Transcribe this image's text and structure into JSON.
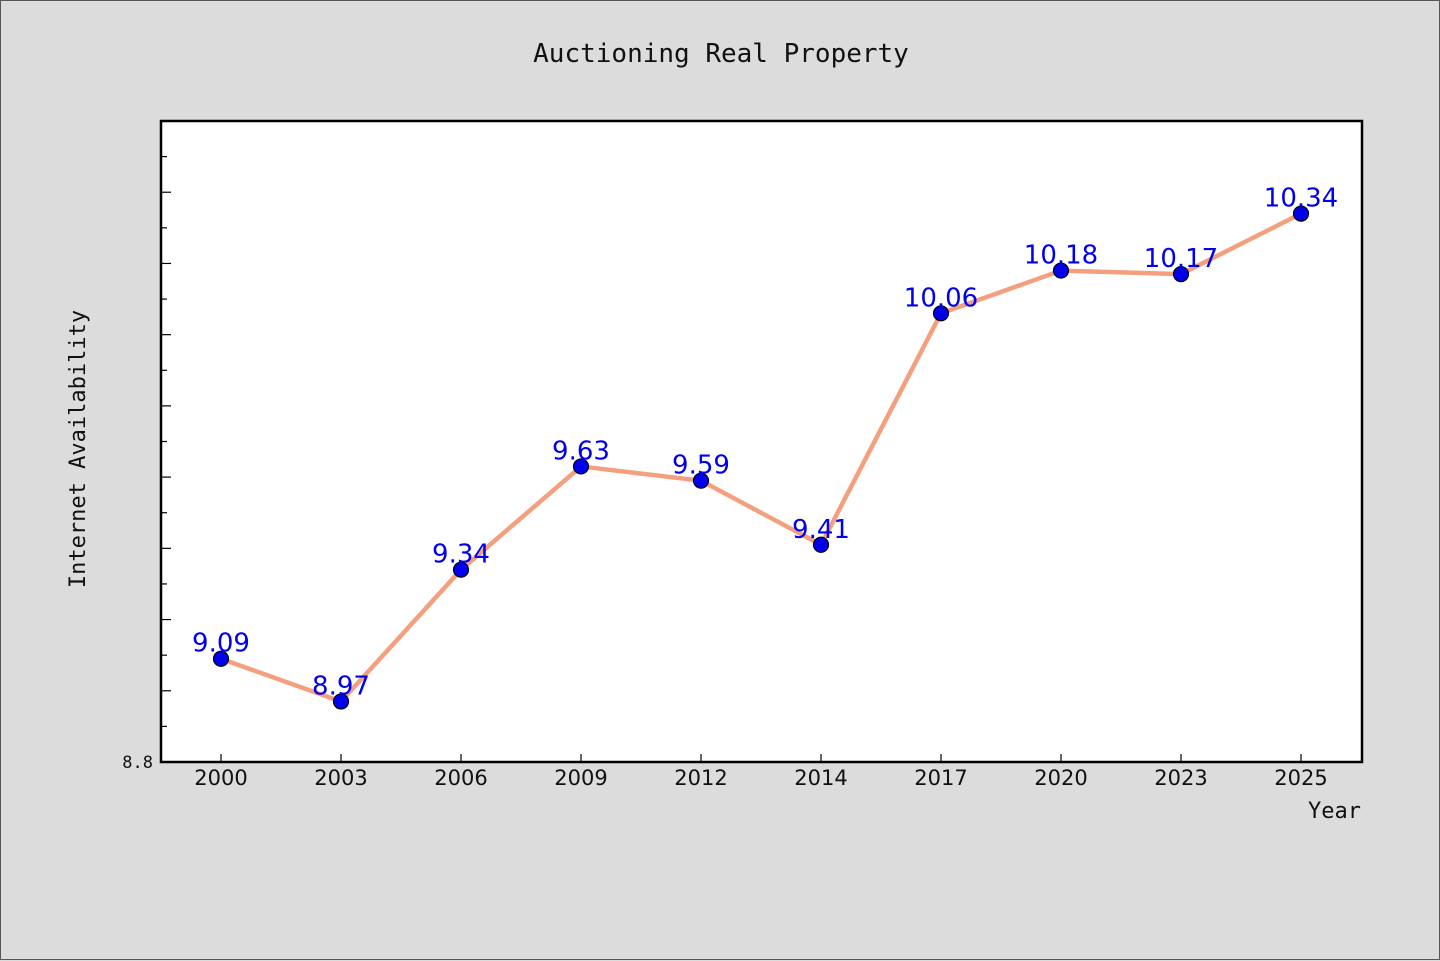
{
  "chart_data": {
    "type": "line",
    "title": "Auctioning Real Property",
    "xlabel": "Year",
    "ylabel": "Internet Availability",
    "x": [
      "2000",
      "2003",
      "2006",
      "2009",
      "2012",
      "2014",
      "2017",
      "2020",
      "2023",
      "2025"
    ],
    "series": [
      {
        "values": [
          9.09,
          8.97,
          9.34,
          9.63,
          9.59,
          9.41,
          10.06,
          10.18,
          10.17,
          10.34
        ]
      }
    ],
    "data_labels": [
      "9.09",
      "8.97",
      "9.34",
      "9.63",
      "9.59",
      "9.41",
      "10.06",
      "10.18",
      "10.17",
      "10.34"
    ],
    "ylim": [
      8.8,
      10.6
    ],
    "ytick_labels": [
      "8.8"
    ],
    "grid": false,
    "legend": "none",
    "colors": {
      "line": "#f4a07e",
      "marker": "#0000ee",
      "marker_edge": "#000000",
      "data_label": "#0000ee",
      "plot_background": "#ffffff",
      "figure_background": "#dcdcdc"
    }
  }
}
